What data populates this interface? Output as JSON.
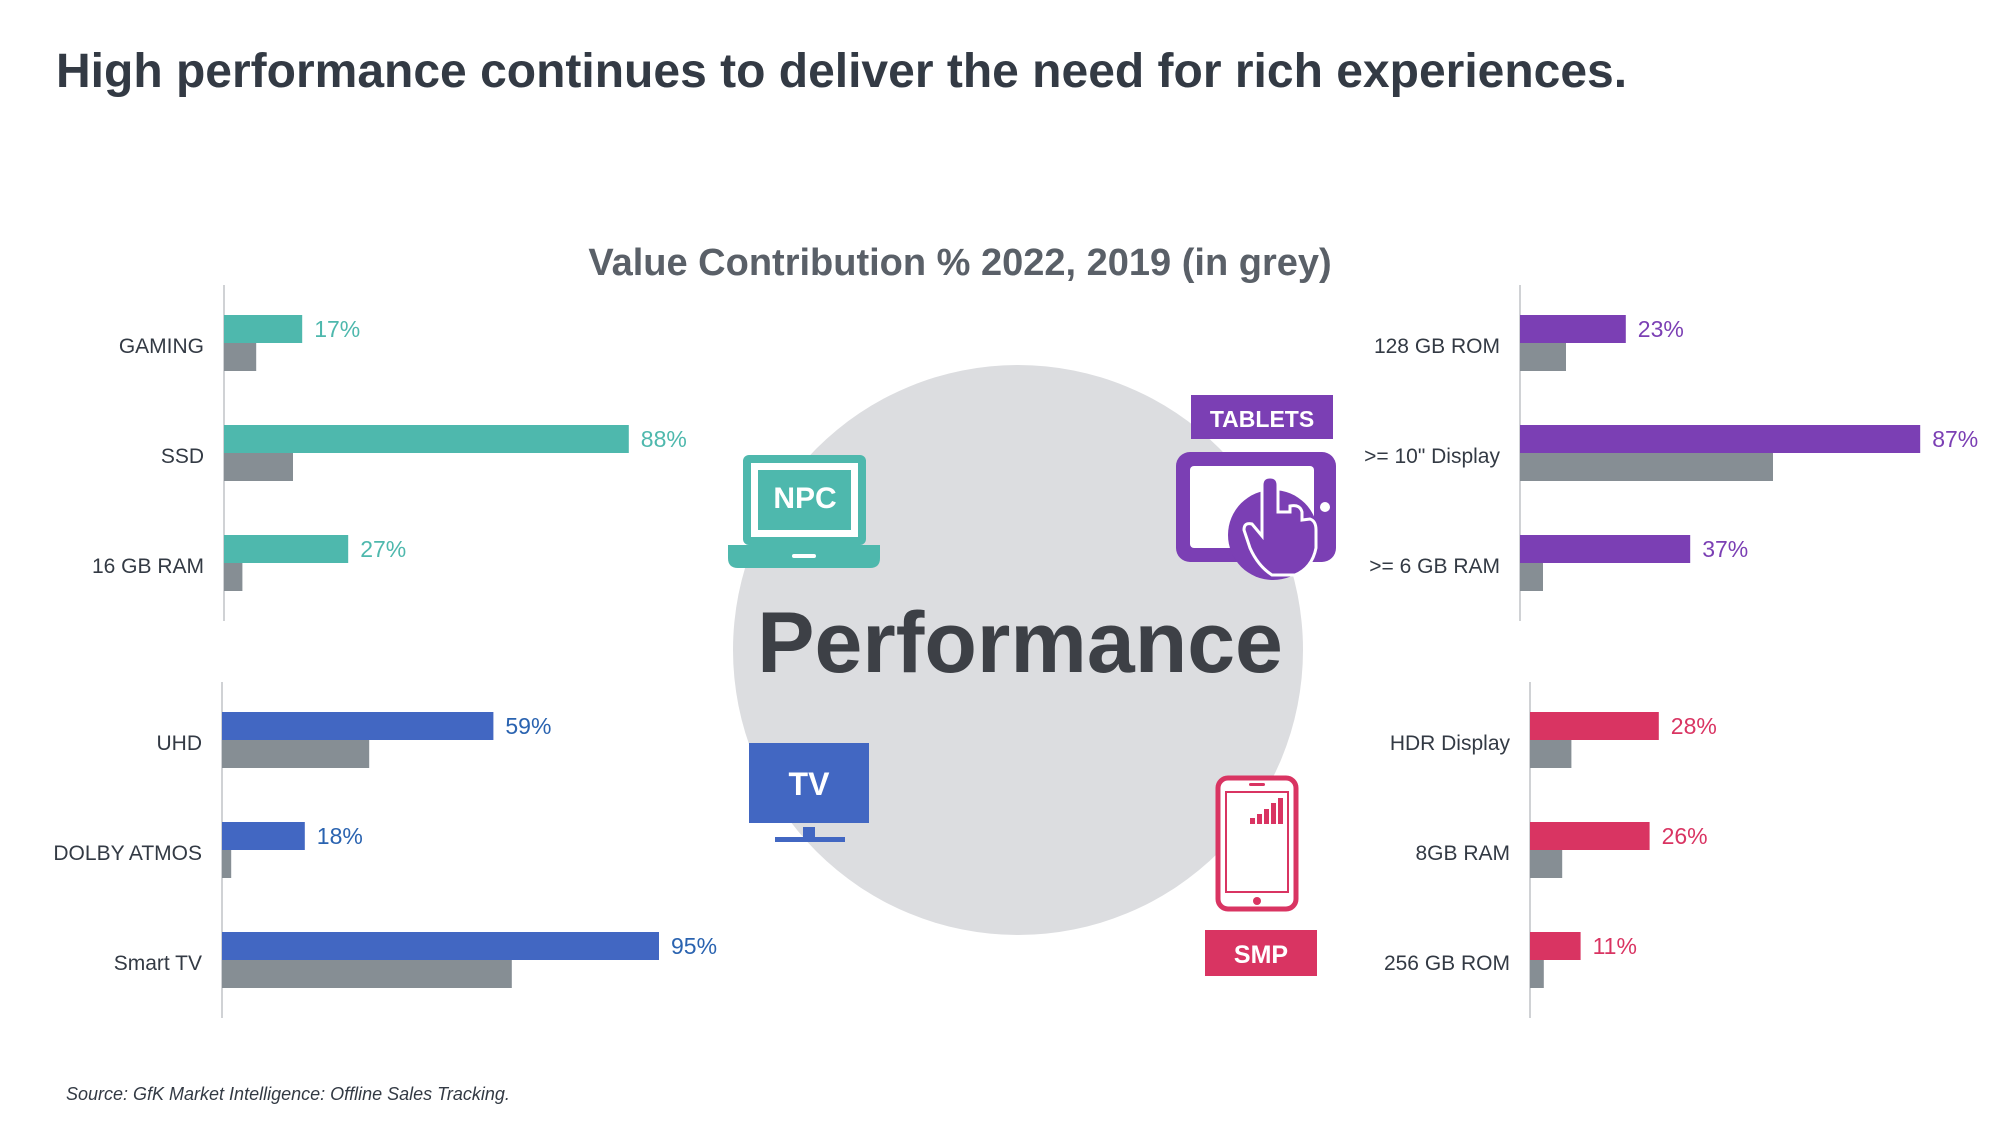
{
  "title": "High performance continues to deliver the need for rich experiences.",
  "source": "Source: GfK Market Intelligence: Offline Sales Tracking.",
  "center_label": "Performance",
  "devices": {
    "npc": "NPC",
    "tablets": "TABLETS",
    "tv": "TV",
    "smp": "SMP"
  },
  "colors": {
    "npc": "#4eb8ad",
    "tablets": "#7b3fb4",
    "tv": "#4267c2",
    "smp": "#d93462",
    "grey": "#868e94",
    "circle": "#dcdde0",
    "tv_label": "#2a63b0"
  },
  "chart_data": {
    "type": "bar",
    "title": "Value Contribution %  2022, 2019 (in grey)",
    "xlim": [
      0,
      100
    ],
    "panels": [
      {
        "device": "NPC",
        "categories": [
          "GAMING",
          "SSD",
          "16 GB RAM"
        ],
        "series": [
          {
            "name": "2022",
            "values": [
              17,
              88,
              27
            ]
          },
          {
            "name": "2019",
            "values": [
              7,
              15,
              4
            ]
          }
        ]
      },
      {
        "device": "TABLETS",
        "categories": [
          "128 GB ROM",
          ">= 10\" Display",
          ">= 6 GB RAM"
        ],
        "series": [
          {
            "name": "2022",
            "values": [
              23,
              87,
              37
            ]
          },
          {
            "name": "2019",
            "values": [
              10,
              55,
              5
            ]
          }
        ]
      },
      {
        "device": "TV",
        "categories": [
          "UHD",
          "DOLBY ATMOS",
          "Smart TV"
        ],
        "series": [
          {
            "name": "2022",
            "values": [
              59,
              18,
              95
            ]
          },
          {
            "name": "2019",
            "values": [
              32,
              2,
              63
            ]
          }
        ]
      },
      {
        "device": "SMP",
        "categories": [
          "HDR Display",
          "8GB RAM",
          "256 GB ROM"
        ],
        "series": [
          {
            "name": "2022",
            "values": [
              28,
              26,
              11
            ]
          },
          {
            "name": "2019",
            "values": [
              9,
              7,
              3
            ]
          }
        ]
      }
    ]
  }
}
